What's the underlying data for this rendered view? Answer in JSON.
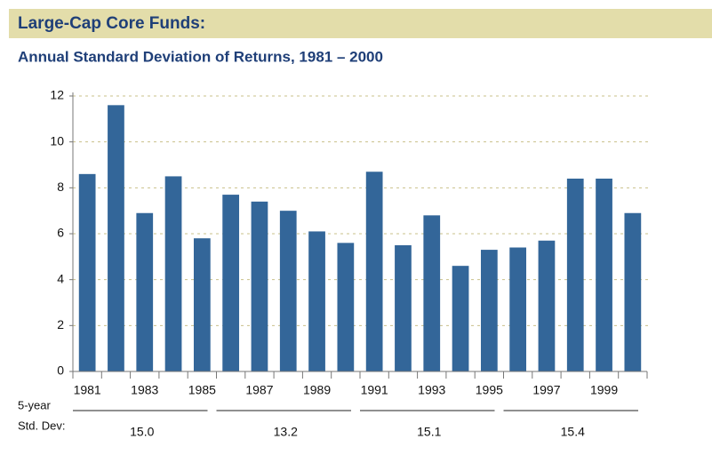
{
  "chart_data": {
    "type": "bar",
    "title": "Large-Cap Core Funds:",
    "subtitle": "Annual Standard Deviation of Returns, 1981 – 2000",
    "categories": [
      "1981",
      null,
      "1983",
      null,
      "1985",
      null,
      "1987",
      null,
      "1989",
      null,
      "1991",
      null,
      "1993",
      null,
      "1995",
      null,
      "1997",
      null,
      "1999",
      null
    ],
    "values": [
      8.6,
      11.6,
      6.9,
      8.5,
      5.8,
      7.7,
      7.4,
      7.0,
      6.1,
      5.6,
      8.7,
      5.5,
      6.8,
      4.6,
      5.3,
      5.4,
      5.7,
      8.4,
      8.4,
      6.9
    ],
    "color": "#336699",
    "ylim": [
      0,
      12
    ],
    "yticks": [
      0,
      2,
      4,
      6,
      8,
      10,
      12
    ],
    "grid": true,
    "five_year_std_dev": {
      "label_1": "5-year",
      "label_2": "Std. Dev:",
      "values": [
        15.0,
        13.2,
        15.1,
        15.4
      ],
      "value_labels": [
        "15.0",
        "13.2",
        "15.1",
        "15.4"
      ]
    }
  }
}
